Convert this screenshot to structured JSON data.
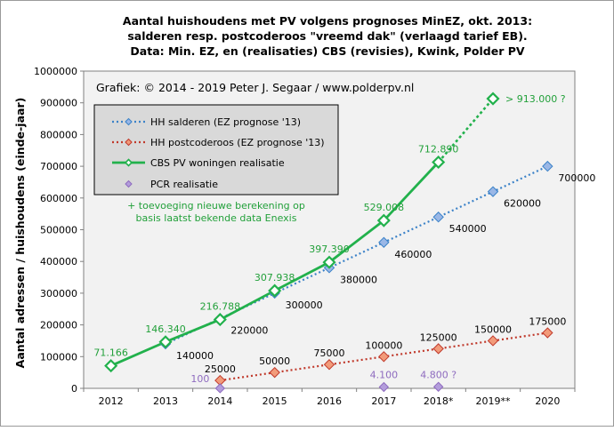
{
  "chart_data": {
    "type": "line",
    "title_lines": [
      "Aantal huishoudens  met PV volgens prognoses MinEZ, okt. 2013:",
      "salderen resp. postcoderoos \"vreemd dak\" (verlaagd tarief EB).",
      "Data: Min. EZ, en (realisaties) CBS (revisies), Kwink,  Polder PV"
    ],
    "credit": "Grafiek:  © 2014 - 2019 Peter J. Segaar / www.polderpv.nl",
    "ylabel": "Aantal adressen / huishoudens (einde-jaar)",
    "xlabel": "",
    "ylim": [
      0,
      1000000
    ],
    "ytick_step": 100000,
    "y_tick_labels": [
      "0",
      "100000",
      "200000",
      "300000",
      "400000",
      "500000",
      "600000",
      "700000",
      "800000",
      "900000",
      "1000000"
    ],
    "categories": [
      "2012",
      "2013",
      "2014",
      "2015",
      "2016",
      "2017",
      "2018*",
      "2019**",
      "2020"
    ],
    "grid": false,
    "legend_position": "top-left",
    "legend": [
      {
        "label": "HH salderen (EZ prognose '13)",
        "series": "salderen"
      },
      {
        "label": "HH postcoderoos (EZ prognose '13)",
        "series": "postcoderoos"
      },
      {
        "label": "CBS PV woningen realisatie",
        "series": "cbs"
      },
      {
        "label": "PCR realisatie",
        "series": "pcr"
      }
    ],
    "annotation_lines": [
      "+ toevoeging nieuwe berekening op",
      "basis laatst bekende data Enexis"
    ],
    "series": [
      {
        "id": "salderen",
        "name": "HH salderen (EZ prognose '13)",
        "color": "#3b82c8",
        "marker_fill": "#9ab7e6",
        "x": [
          "2013",
          "2014",
          "2015",
          "2016",
          "2017",
          "2018*",
          "2019**",
          "2020"
        ],
        "values": [
          140000,
          220000,
          300000,
          380000,
          460000,
          540000,
          620000,
          700000
        ],
        "labels": [
          "140000",
          "220000",
          "300000",
          "380000",
          "460000",
          "540000",
          "620000",
          "700000"
        ]
      },
      {
        "id": "postcoderoos",
        "name": "HH postcoderoos (EZ prognose '13)",
        "color": "#c0392b",
        "marker_fill": "#f29b7a",
        "x": [
          "2014",
          "2015",
          "2016",
          "2017",
          "2018*",
          "2019**",
          "2020"
        ],
        "values": [
          25000,
          50000,
          75000,
          100000,
          125000,
          150000,
          175000
        ],
        "labels": [
          "25000",
          "50000",
          "75000",
          "100000",
          "125000",
          "150000",
          "175000"
        ]
      },
      {
        "id": "cbs",
        "name": "CBS PV woningen realisatie",
        "color": "#22b14c",
        "x": [
          "2012",
          "2013",
          "2014",
          "2015",
          "2016",
          "2017",
          "2018*"
        ],
        "values": [
          71166,
          146340,
          216788,
          307938,
          397390,
          529008,
          712890
        ],
        "labels": [
          "71.166",
          "146.340",
          "216.788",
          "307.938",
          "397.390",
          "529.008",
          "712.890"
        ]
      },
      {
        "id": "cbs_prognose",
        "color": "#22b14c",
        "x": [
          "2018*",
          "2019**"
        ],
        "values": [
          712890,
          913000
        ],
        "labels": [
          "",
          "> 913.000 ?"
        ]
      },
      {
        "id": "pcr",
        "name": "PCR realisatie",
        "color": "#8e6bbf",
        "x": [
          "2014",
          "2017",
          "2018*"
        ],
        "values": [
          100,
          4100,
          4800
        ],
        "labels": [
          "100",
          "4.100",
          "4.800 ?"
        ]
      }
    ]
  }
}
